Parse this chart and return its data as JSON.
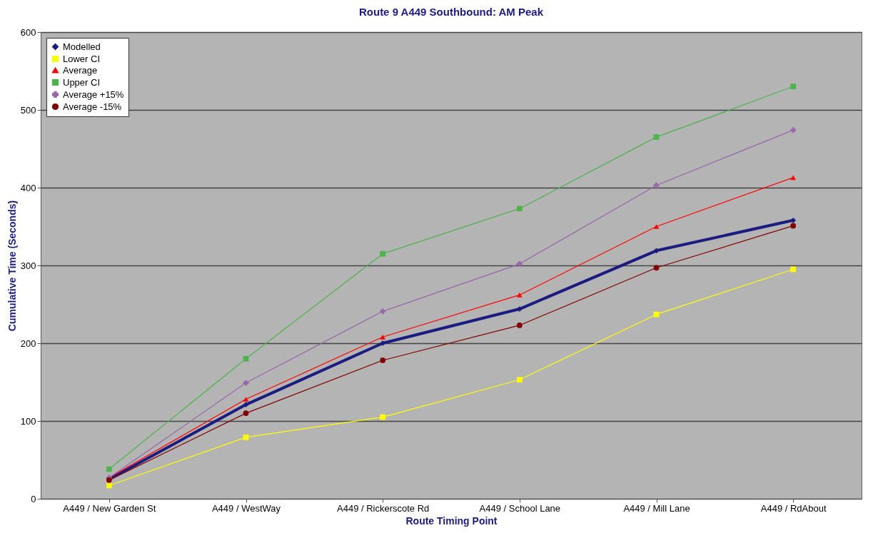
{
  "chart_data": {
    "type": "line",
    "title": "Route 9 A449 Southbound: AM Peak",
    "xlabel": "Route Timing Point",
    "ylabel": "Cumulative Time (Seconds)",
    "categories": [
      "A449 / New Garden St",
      "A449 / WestWay",
      "A449 / Rickerscote Rd",
      "A449 / School Lane",
      "A449 / Mill Lane",
      "A449 / RdAbout"
    ],
    "series": [
      {
        "name": "Modelled",
        "color": "#1c1c80",
        "marker": "diamond",
        "values": [
          25,
          121,
          200,
          244,
          319,
          358
        ]
      },
      {
        "name": "Lower CI",
        "color": "#ffff00",
        "marker": "square",
        "values": [
          17,
          79,
          105,
          153,
          237,
          295
        ]
      },
      {
        "name": "Average",
        "color": "#ff0000",
        "marker": "triangle",
        "values": [
          27,
          128,
          208,
          262,
          350,
          413
        ]
      },
      {
        "name": "Upper CI",
        "color": "#4db34d",
        "marker": "square",
        "values": [
          38,
          180,
          315,
          373,
          465,
          530
        ]
      },
      {
        "name": "Average +15%",
        "color": "#9966aa",
        "marker": "cross",
        "values": [
          27,
          149,
          241,
          302,
          403,
          474
        ]
      },
      {
        "name": "Average -15%",
        "color": "#800000",
        "marker": "circle",
        "values": [
          24,
          110,
          178,
          223,
          297,
          351
        ]
      }
    ],
    "ylim": [
      0,
      600
    ],
    "yticks": [
      0,
      100,
      200,
      300,
      400,
      500,
      600
    ],
    "grid": "y",
    "legend": "top left"
  }
}
